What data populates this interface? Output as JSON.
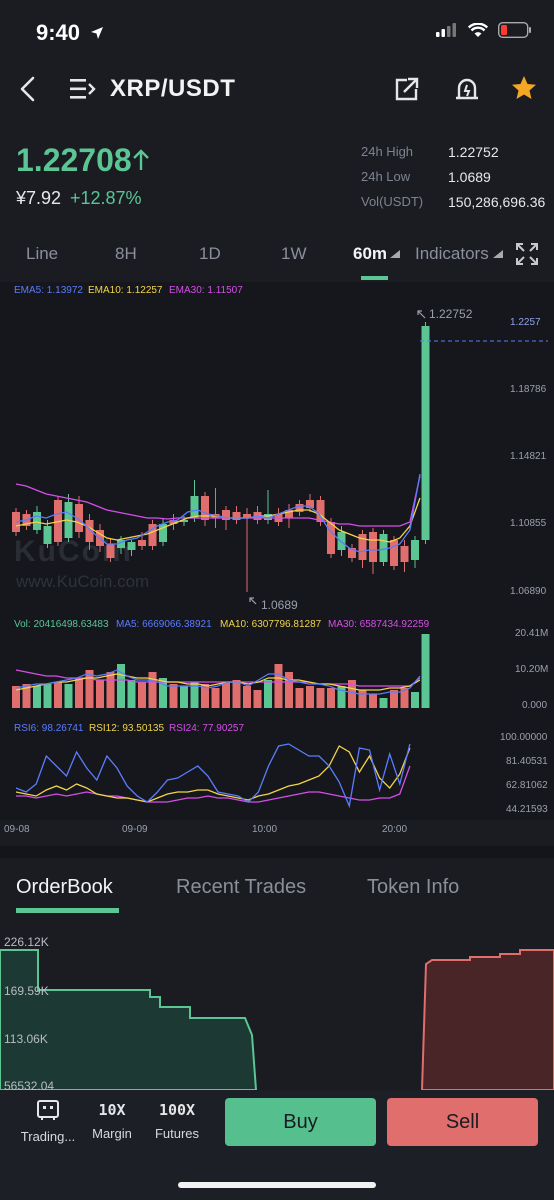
{
  "status": {
    "time": "9:40"
  },
  "header": {
    "pair": "XRP/USDT"
  },
  "price": {
    "last": "1.22708",
    "cny": "¥7.92",
    "change": "+12.87%",
    "stats": [
      {
        "label": "24h High",
        "value": "1.22752"
      },
      {
        "label": "24h Low",
        "value": "1.0689"
      },
      {
        "label": "Vol(USDT)",
        "value": "150,286,696.36"
      }
    ]
  },
  "timeframes": [
    "Line",
    "8H",
    "1D",
    "1W",
    "60m",
    "Indicators"
  ],
  "active_timeframe": "60m",
  "indicators": {
    "ema5": "EMA5: 1.13972",
    "ema10": "EMA10: 1.12257",
    "ema30": "EMA30: 1.11507",
    "vol": "Vol: 20416498.63483",
    "ma5": "MA5: 6669066.38921",
    "ma10": "MA10: 6307796.81287",
    "ma30": "MA30: 6587434.92259",
    "rsi6": "RSI6: 98.26741",
    "rsi12": "RSI12: 93.50135",
    "rsi24": "RSI24: 77.90257"
  },
  "price_axis": [
    "1.2257",
    "1.18786",
    "1.14821",
    "1.10855",
    "1.06890"
  ],
  "vol_axis": [
    "20.41M",
    "10.20M",
    "0.000"
  ],
  "rsi_axis": [
    "100.00000",
    "81.40531",
    "62.81062",
    "44.21593"
  ],
  "time_axis": [
    "09-08",
    "09-09",
    "10:00",
    "20:00"
  ],
  "high_marker": "1.22752",
  "low_marker": "1.0689",
  "watermark": {
    "logo": "KuCoin",
    "url": "www.KuCoin.com"
  },
  "colors": {
    "up": "#5bc594",
    "down": "#e06e6c",
    "ema5": "#5b7cff",
    "ema10": "#f2d44a",
    "ema30": "#d64ee8",
    "star": "#f5a623"
  },
  "orderbook": {
    "tabs": [
      "OrderBook",
      "Recent Trades",
      "Token Info"
    ],
    "active": "OrderBook",
    "depth_axis": [
      "226.12K",
      "169.59K",
      "113.06K",
      "56532.04"
    ]
  },
  "bottom_nav": [
    {
      "label": "Trading...",
      "icon": "trading-icon"
    },
    {
      "label": "Margin",
      "icon": "margin-10x-icon",
      "glyph": "10X"
    },
    {
      "label": "Futures",
      "icon": "futures-100x-icon",
      "glyph": "100X"
    }
  ],
  "actions": {
    "buy": "Buy",
    "sell": "Sell"
  }
}
